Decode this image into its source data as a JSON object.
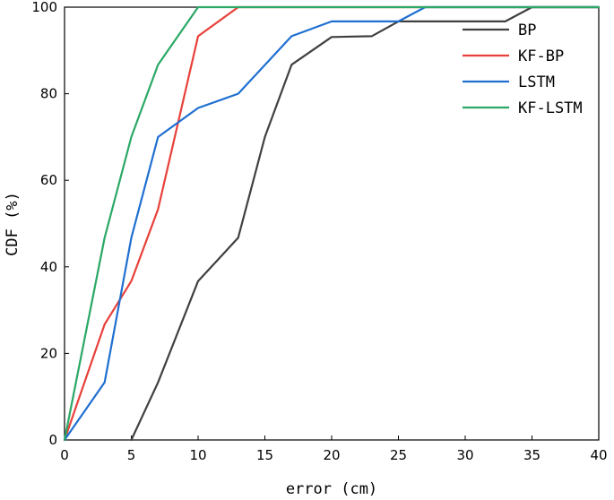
{
  "chart_data": {
    "type": "line",
    "title": "",
    "xlabel": "error (cm)",
    "ylabel": "CDF (%)",
    "xlim": [
      0,
      40
    ],
    "ylim": [
      0,
      100
    ],
    "xticks": [
      0,
      5,
      10,
      15,
      20,
      25,
      30,
      35,
      40
    ],
    "yticks": [
      0,
      20,
      40,
      60,
      80,
      100
    ],
    "grid": false,
    "legend_position": "top-right",
    "series": [
      {
        "name": "BP",
        "color": "#404040",
        "x": [
          5,
          7,
          10,
          13,
          15,
          17,
          20,
          23,
          25,
          33,
          35,
          40
        ],
        "y": [
          0,
          13.3,
          36.7,
          46.7,
          70,
          86.7,
          93.1,
          93.3,
          96.7,
          96.7,
          100,
          100
        ]
      },
      {
        "name": "KF-BP",
        "color": "#e8403a",
        "x": [
          0,
          3,
          5,
          7,
          10,
          13,
          40
        ],
        "y": [
          0,
          26.7,
          36.7,
          53.3,
          93.3,
          100,
          100
        ]
      },
      {
        "name": "LSTM",
        "color": "#1f6fd1",
        "x": [
          0,
          3,
          5,
          7,
          10,
          13,
          17,
          20,
          25,
          27,
          40
        ],
        "y": [
          0,
          13.3,
          46.7,
          70,
          76.7,
          80,
          93.3,
          96.7,
          96.7,
          100,
          100
        ]
      },
      {
        "name": "KF-LSTM",
        "color": "#2aa865",
        "x": [
          0,
          3,
          5,
          7,
          10,
          40
        ],
        "y": [
          0,
          46.7,
          70,
          86.7,
          100,
          100
        ]
      }
    ]
  }
}
